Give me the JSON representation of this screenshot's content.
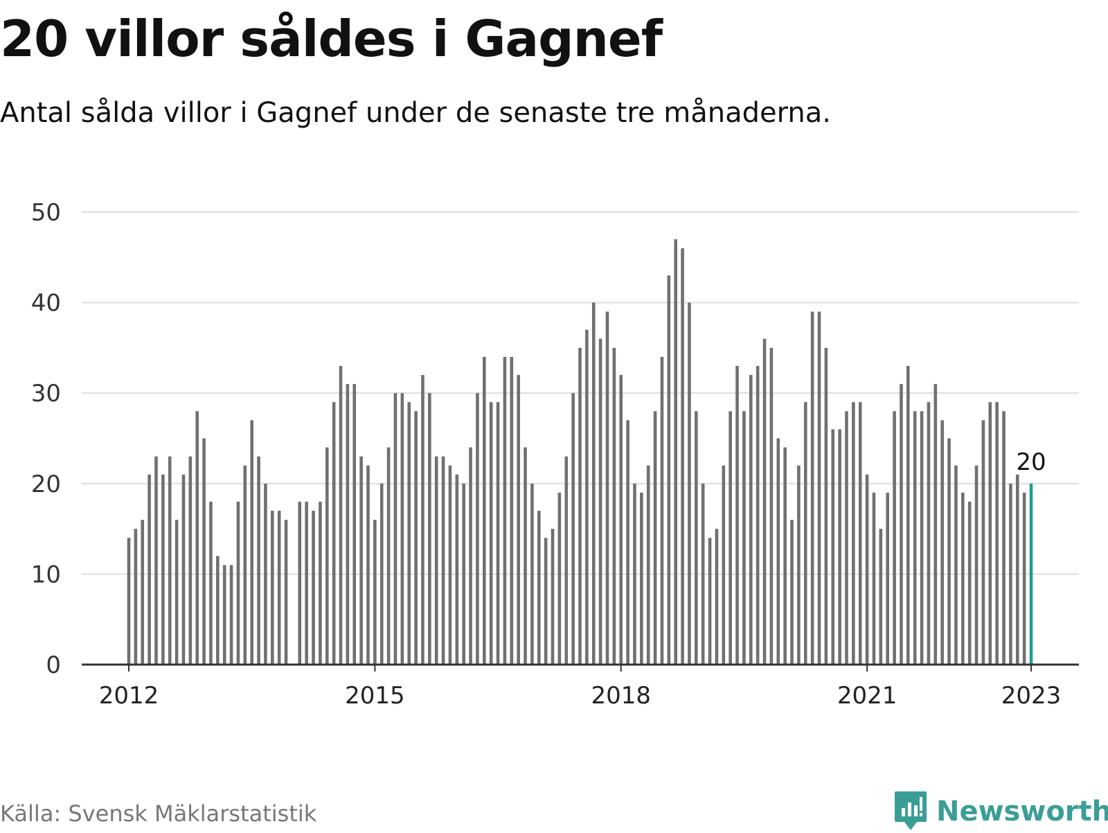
{
  "title": "20 villor såldes i Gagnef",
  "subtitle": "Antal sålda villor i Gagnef under de senaste tre månaderna.",
  "source": "Källa: Svensk Mäklarstatistik",
  "brand": "Newsworthy",
  "colors": {
    "bar": "#707070",
    "highlight": "#1a9e94",
    "grid": "#dcdcdc",
    "axis": "#333333",
    "brand": "#3a9e96"
  },
  "chart_data": {
    "type": "bar",
    "title": "20 villor såldes i Gagnef",
    "subtitle": "Antal sålda villor i Gagnef under de senaste tre månaderna.",
    "xlabel": "",
    "ylabel": "",
    "ylim": [
      0,
      50
    ],
    "yticks": [
      "0",
      "10",
      "20",
      "30",
      "40",
      "50"
    ],
    "xticks": [
      "2012",
      "2015",
      "2018",
      "2021",
      "2023"
    ],
    "x_start": "2012-01",
    "x_end": "2023-01",
    "grid": true,
    "highlight_label": "20",
    "series": [
      {
        "values": [
          14,
          15,
          16,
          21,
          23,
          21,
          23,
          16,
          21,
          23,
          28,
          25,
          18,
          12,
          11,
          11,
          18,
          22,
          27,
          23,
          20,
          17,
          17,
          16,
          null,
          18,
          18,
          17,
          18,
          24,
          29,
          33,
          31,
          31,
          23,
          22,
          16,
          20,
          24,
          30,
          30,
          29,
          28,
          32,
          30,
          23,
          23,
          22,
          21,
          20,
          24,
          30,
          34,
          29,
          29,
          34,
          34,
          32,
          24,
          20,
          17,
          14,
          15,
          19,
          23,
          30,
          35,
          37,
          40,
          36,
          39,
          35,
          32,
          27,
          20,
          19,
          22,
          28,
          34,
          43,
          47,
          46,
          40,
          28,
          20,
          14,
          15,
          22,
          28,
          33,
          28,
          32,
          33,
          36,
          35,
          25,
          24,
          16,
          22,
          29,
          39,
          39,
          35,
          26,
          26,
          28,
          29,
          29,
          21,
          19,
          15,
          19,
          28,
          31,
          33,
          28,
          28,
          29,
          31,
          27,
          25,
          22,
          19,
          18,
          22,
          27,
          29,
          29,
          28,
          20,
          21,
          19,
          20
        ]
      }
    ]
  }
}
